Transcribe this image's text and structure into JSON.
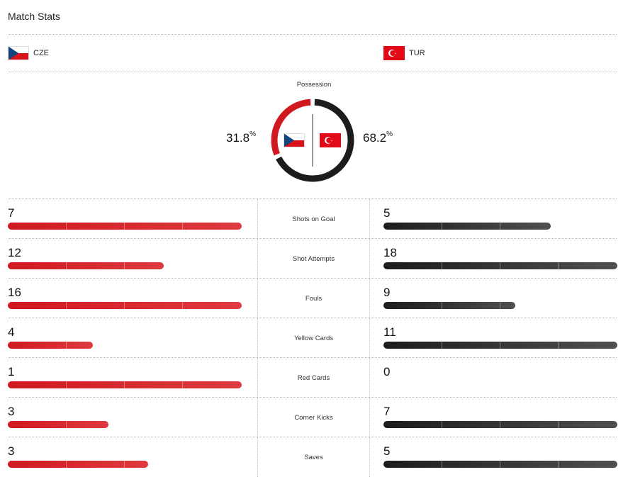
{
  "title": "Match Stats",
  "teams": {
    "home": {
      "abbr": "CZE",
      "flag": "czech-flag"
    },
    "away": {
      "abbr": "TUR",
      "flag": "turkey-flag"
    }
  },
  "possession": {
    "label": "Possession",
    "home_value": "31.8",
    "away_value": "68.2",
    "unit": "%",
    "home_fraction": 0.318,
    "away_fraction": 0.682
  },
  "colors": {
    "home": "#d01820",
    "away": "#1c1c1c"
  },
  "stats": [
    {
      "label": "Shots on Goal",
      "home": "7",
      "away": "5",
      "home_fill": 1.0,
      "away_fill": 0.714
    },
    {
      "label": "Shot Attempts",
      "home": "12",
      "away": "18",
      "home_fill": 0.667,
      "away_fill": 1.0
    },
    {
      "label": "Fouls",
      "home": "16",
      "away": "9",
      "home_fill": 1.0,
      "away_fill": 0.5625
    },
    {
      "label": "Yellow Cards",
      "home": "4",
      "away": "11",
      "home_fill": 0.364,
      "away_fill": 1.0
    },
    {
      "label": "Red Cards",
      "home": "1",
      "away": "0",
      "home_fill": 1.0,
      "away_fill": 0.0
    },
    {
      "label": "Corner Kicks",
      "home": "3",
      "away": "7",
      "home_fill": 0.429,
      "away_fill": 1.0
    },
    {
      "label": "Saves",
      "home": "3",
      "away": "5",
      "home_fill": 0.6,
      "away_fill": 1.0
    }
  ]
}
